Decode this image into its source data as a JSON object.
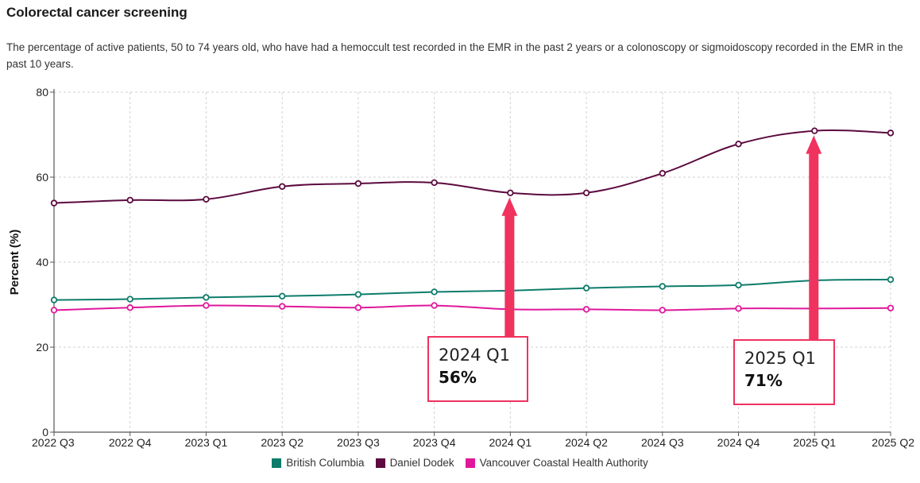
{
  "header": {
    "title": "Colorectal cancer screening",
    "description": "The percentage of active patients, 50 to 74 years old, who have had a hemoccult test recorded in the EMR in the past 2 years or a colonoscopy or sigmoidoscopy recorded in the EMR in the past 10 years."
  },
  "chart_data": {
    "type": "line",
    "title": "Colorectal cancer screening",
    "xlabel": "",
    "ylabel": "Percent (%)",
    "ylim": [
      0,
      80
    ],
    "yticks": [
      "0",
      "20",
      "40",
      "60",
      "80"
    ],
    "grid": true,
    "legend_position": "bottom",
    "categories": [
      "2022 Q3",
      "2022 Q4",
      "2023 Q1",
      "2023 Q2",
      "2023 Q3",
      "2023 Q4",
      "2024 Q1",
      "2024 Q2",
      "2024 Q3",
      "2024 Q4",
      "2025 Q1",
      "2025 Q2"
    ],
    "series": [
      {
        "name": "British Columbia",
        "color": "#0e7c6b",
        "values": [
          31.1,
          31.3,
          31.7,
          32.0,
          32.4,
          33.0,
          33.3,
          33.9,
          34.3,
          34.6,
          35.7,
          35.9
        ]
      },
      {
        "name": "Daniel Dodek",
        "color": "#5c0a3f",
        "values": [
          53.9,
          54.6,
          54.8,
          57.8,
          58.5,
          58.7,
          56.3,
          56.3,
          60.9,
          67.8,
          70.9,
          70.4
        ]
      },
      {
        "name": "Vancouver Coastal Health Authority",
        "color": "#e0179b",
        "values": [
          28.7,
          29.3,
          29.8,
          29.6,
          29.3,
          29.8,
          28.9,
          28.9,
          28.7,
          29.1,
          29.1,
          29.2
        ]
      }
    ],
    "annotations": [
      {
        "category": "2024 Q1",
        "label": "2024 Q1",
        "value_label": "56%",
        "value": 56.3,
        "color": "#f0325e"
      },
      {
        "category": "2025 Q1",
        "label": "2025 Q1",
        "value_label": "71%",
        "value": 70.9,
        "color": "#f0325e"
      }
    ]
  }
}
